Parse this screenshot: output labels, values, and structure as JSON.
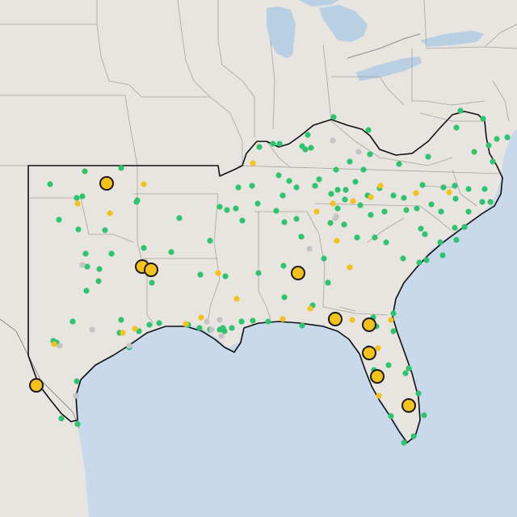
{
  "map": {
    "colors": {
      "land": "#e8e4e0",
      "water": "#c7d9ea",
      "lake": "#b9cfe3",
      "state_border": "#a6a3a1",
      "country_border": "#8f8c8a",
      "region_outline": "#111111",
      "marker_green": "#2ec36f",
      "marker_yellow": "#f4c21b",
      "marker_gray": "#c4c4c4",
      "large_marker_stroke": "#1a1a1a"
    },
    "legend_categories": [
      "green",
      "yellow",
      "gray"
    ]
  }
}
